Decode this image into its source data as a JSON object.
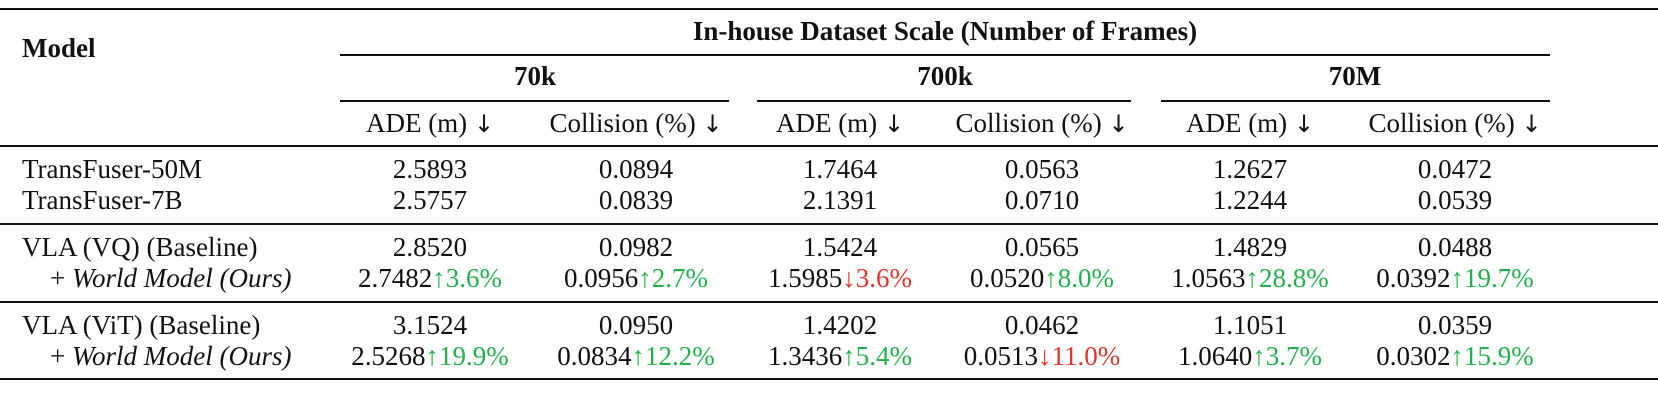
{
  "header": {
    "model_label": "Model",
    "group_title": "In-house Dataset Scale (Number of Frames)",
    "scales": [
      "70k",
      "700k",
      "70M"
    ],
    "metric_ade": "ADE (m)",
    "metric_collision": "Collision (%)",
    "lower_better_arrow": "↓"
  },
  "rows": [
    {
      "model": "TransFuser-50M",
      "italic": false,
      "cells": [
        {
          "v": "2.5893"
        },
        {
          "v": "0.0894"
        },
        {
          "v": "1.7464"
        },
        {
          "v": "0.0563"
        },
        {
          "v": "1.2627"
        },
        {
          "v": "0.0472"
        }
      ]
    },
    {
      "model": "TransFuser-7B",
      "italic": false,
      "cells": [
        {
          "v": "2.5757"
        },
        {
          "v": "0.0839"
        },
        {
          "v": "2.1391"
        },
        {
          "v": "0.0710"
        },
        {
          "v": "1.2244"
        },
        {
          "v": "0.0539"
        }
      ]
    },
    {
      "model": "VLA (VQ) (Baseline)",
      "italic": false,
      "cells": [
        {
          "v": "2.8520"
        },
        {
          "v": "0.0982"
        },
        {
          "v": "1.5424"
        },
        {
          "v": "0.0565"
        },
        {
          "v": "1.4829"
        },
        {
          "v": "0.0488"
        }
      ]
    },
    {
      "model_prefix": "+ ",
      "model": "World Model (Ours)",
      "italic": true,
      "cells": [
        {
          "v": "2.7482",
          "d": "↑3.6%",
          "t": "up"
        },
        {
          "v": "0.0956",
          "d": "↑2.7%",
          "t": "up"
        },
        {
          "v": "1.5985",
          "d": "↓3.6%",
          "t": "down"
        },
        {
          "v": "0.0520",
          "d": "↑8.0%",
          "t": "up"
        },
        {
          "v": "1.0563",
          "d": "↑28.8%",
          "t": "up"
        },
        {
          "v": "0.0392",
          "d": "↑19.7%",
          "t": "up"
        }
      ]
    },
    {
      "model": "VLA (ViT) (Baseline)",
      "italic": false,
      "cells": [
        {
          "v": "3.1524"
        },
        {
          "v": "0.0950"
        },
        {
          "v": "1.4202"
        },
        {
          "v": "0.0462"
        },
        {
          "v": "1.1051"
        },
        {
          "v": "0.0359"
        }
      ]
    },
    {
      "model_prefix": "+ ",
      "model": "World Model (Ours)",
      "italic": true,
      "cells": [
        {
          "v": "2.5268",
          "d": "↑19.9%",
          "t": "up"
        },
        {
          "v": "0.0834",
          "d": "↑12.2%",
          "t": "up"
        },
        {
          "v": "1.3436",
          "d": "↑5.4%",
          "t": "up"
        },
        {
          "v": "0.0513",
          "d": "↓11.0%",
          "t": "down"
        },
        {
          "v": "1.0640",
          "d": "↑3.7%",
          "t": "up"
        },
        {
          "v": "0.0302",
          "d": "↑15.9%",
          "t": "up"
        }
      ]
    }
  ]
}
